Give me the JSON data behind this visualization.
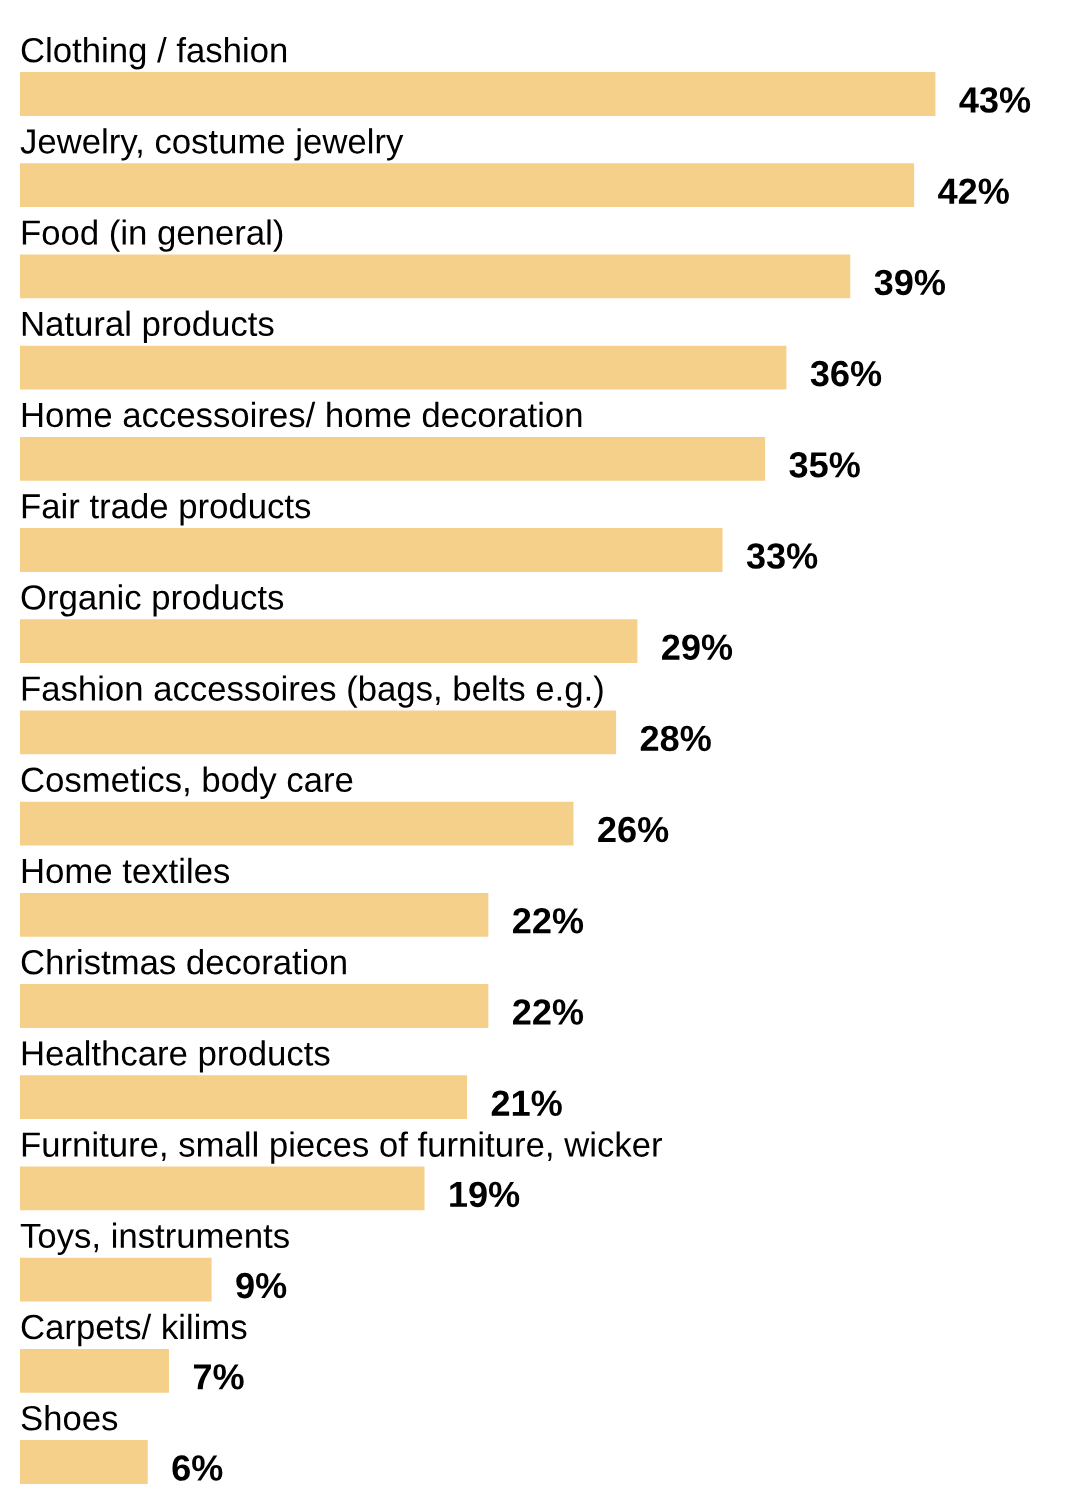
{
  "chart_data": {
    "type": "bar",
    "orientation": "horizontal",
    "color": "#f5d08a",
    "categories": [
      "Clothing / fashion",
      "Jewelry, costume jewelry",
      "Food (in general)",
      "Natural products",
      "Home accessoires/ home decoration",
      "Fair trade products",
      "Organic products",
      "Fashion accessoires (bags, belts e.g.)",
      "Cosmetics, body care",
      "Home textiles",
      "Christmas decoration",
      "Healthcare products",
      "Furniture, small pieces of furniture, wicker",
      "Toys, instruments",
      "Carpets/ kilims",
      "Shoes"
    ],
    "values": [
      43,
      42,
      39,
      36,
      35,
      33,
      29,
      28,
      26,
      22,
      22,
      21,
      19,
      9,
      7,
      6
    ],
    "value_labels": [
      "43%",
      "42%",
      "39%",
      "36%",
      "35%",
      "33%",
      "29%",
      "28%",
      "26%",
      "22%",
      "22%",
      "21%",
      "19%",
      "9%",
      "7%",
      "6%"
    ]
  }
}
